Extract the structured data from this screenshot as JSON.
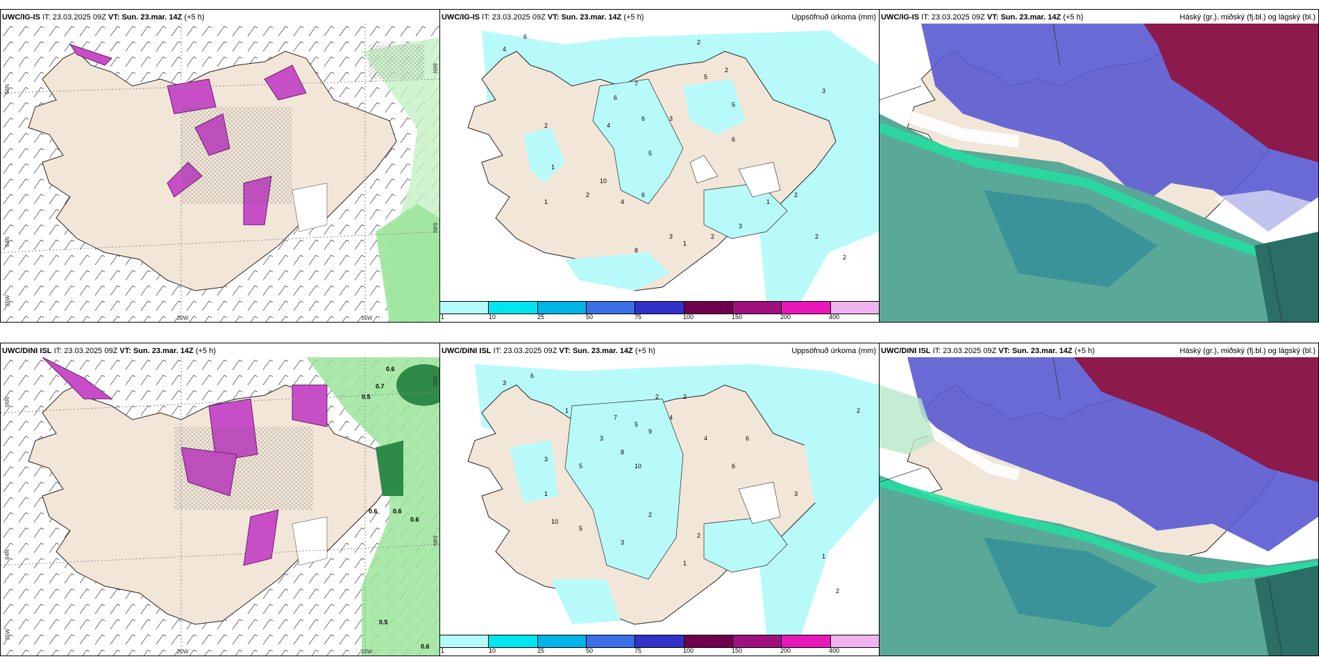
{
  "panels": [
    {
      "id": "p1",
      "model": "UWC/IG-IS",
      "it_label": "IT:",
      "it_value": "23.03.2025 09Z",
      "vt_label": "VT:",
      "vt_value": "Sun. 23.mar. 14Z",
      "lead": "(+5 h)",
      "right_title": "",
      "axis_labels": [
        "66N",
        "64N",
        "25W",
        "20W",
        "15W",
        "66N",
        "64N"
      ]
    },
    {
      "id": "p2",
      "model": "UWC/IG-IS",
      "it_label": "IT:",
      "it_value": "23.03.2025 09Z",
      "vt_label": "VT:",
      "vt_value": "Sun. 23.mar. 14Z",
      "lead": "(+5 h)",
      "right_title": "Uppsöfnuð úrkoma (mm)",
      "values": [
        "6",
        "4",
        "2",
        "2",
        "7",
        "6",
        "5",
        "3",
        "4",
        "5",
        "6",
        "2",
        "1",
        "10",
        "5",
        "4",
        "1",
        "2",
        "6",
        "3",
        "8",
        "2",
        "3",
        "6",
        "1",
        "2",
        "2",
        "1",
        "3",
        "2"
      ]
    },
    {
      "id": "p3",
      "model": "UWC/IG-IS",
      "it_label": "IT:",
      "it_value": "23.03.2025 09Z",
      "vt_label": "VT:",
      "vt_value": "Sun. 23.mar. 14Z",
      "lead": "(+5 h)",
      "right_title": "Háský (gr.), miðský (fj.bl.) og lágský (bl.)"
    },
    {
      "id": "p4",
      "model": "UWC/DINI ISL",
      "it_label": "IT:",
      "it_value": "23.03.2025 09Z",
      "vt_label": "VT:",
      "vt_value": "Sun. 23.mar. 14Z",
      "lead": "(+5 h)",
      "right_title": "",
      "axis_labels": [
        "66N",
        "64N",
        "25W",
        "20W",
        "15W",
        "66N",
        "64N"
      ],
      "values": [
        "0.6",
        "0.7",
        "0.5",
        "0.6",
        "0.6",
        "0.6",
        "0.5",
        "0.6"
      ]
    },
    {
      "id": "p5",
      "model": "UWC/DINI ISL",
      "it_label": "IT:",
      "it_value": "23.03.2025 09Z",
      "vt_label": "VT:",
      "vt_value": "Sun. 23.mar. 14Z",
      "lead": "(+5 h)",
      "right_title": "Uppsöfnuð úrkoma (mm)",
      "values": [
        "3",
        "6",
        "1",
        "2",
        "7",
        "5",
        "9",
        "4",
        "3",
        "10",
        "5",
        "8",
        "3",
        "4",
        "6",
        "2",
        "1",
        "10",
        "6",
        "2",
        "3",
        "5",
        "2",
        "1",
        "3",
        "2",
        "1",
        "2"
      ]
    },
    {
      "id": "p6",
      "model": "UWC/DINI ISL",
      "it_label": "IT:",
      "it_value": "23.03.2025 09Z",
      "vt_label": "VT:",
      "vt_value": "Sun. 23.mar. 14Z",
      "lead": "(+5 h)",
      "right_title": "Háský (gr.), miðský (fj.bl.) og lágský (bl.)"
    }
  ],
  "colorbar": {
    "colors": [
      "#b4fafa",
      "#00e5ee",
      "#00b4e8",
      "#3a6fe8",
      "#3232c8",
      "#6e004e",
      "#a0107e",
      "#e818b8",
      "#f0b4f0"
    ],
    "ticks": [
      "1",
      "10",
      "25",
      "50",
      "75",
      "100",
      "150",
      "200",
      "400"
    ]
  },
  "colors": {
    "land": "#f2e6d8",
    "precip_light": "#b8fafa",
    "sea_green": "#5aa898",
    "cloud_blue": "#5a5ad2",
    "cloud_dark": "#8c1a4a",
    "green_precip": "#9be59b",
    "purple_precip": "#c84ec8"
  }
}
